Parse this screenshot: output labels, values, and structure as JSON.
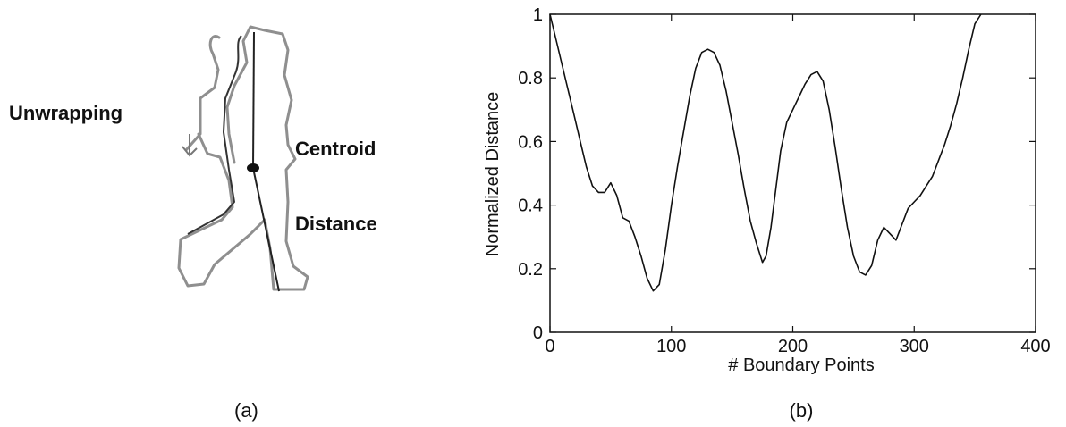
{
  "panel_a": {
    "labels": {
      "unwrapping": "Unwrapping",
      "centroid": "Centroid",
      "distance": "Distance"
    },
    "caption": "(a)"
  },
  "panel_b": {
    "caption": "(b)"
  },
  "chart_data": {
    "type": "line",
    "title": "",
    "xlabel": "# Boundary Points",
    "ylabel": "Normalized Distance",
    "xlim": [
      0,
      400
    ],
    "ylim": [
      0,
      1
    ],
    "xticks": [
      0,
      100,
      200,
      300,
      400
    ],
    "yticks": [
      0,
      0.2,
      0.4,
      0.6,
      0.8,
      1
    ],
    "grid": false,
    "series": [
      {
        "x": [
          0,
          5,
          10,
          15,
          20,
          25,
          30,
          35,
          40,
          45,
          50,
          55,
          60,
          65,
          70,
          75,
          80,
          85,
          90,
          95,
          100,
          105,
          110,
          115,
          120,
          125,
          130,
          135,
          140,
          145,
          150,
          155,
          160,
          165,
          170,
          175,
          178,
          182,
          186,
          190,
          195,
          200,
          205,
          210,
          215,
          220,
          225,
          230,
          235,
          240,
          245,
          250,
          255,
          260,
          265,
          270,
          275,
          280,
          285,
          290,
          295,
          300,
          305,
          310,
          315,
          320,
          325,
          330,
          335,
          340,
          345,
          350,
          355
        ],
        "y": [
          1.0,
          0.92,
          0.84,
          0.76,
          0.68,
          0.6,
          0.52,
          0.46,
          0.44,
          0.44,
          0.47,
          0.43,
          0.36,
          0.35,
          0.3,
          0.24,
          0.17,
          0.13,
          0.15,
          0.26,
          0.4,
          0.52,
          0.63,
          0.74,
          0.83,
          0.88,
          0.89,
          0.88,
          0.84,
          0.76,
          0.66,
          0.56,
          0.45,
          0.35,
          0.28,
          0.22,
          0.24,
          0.33,
          0.45,
          0.57,
          0.66,
          0.7,
          0.74,
          0.78,
          0.81,
          0.82,
          0.79,
          0.7,
          0.58,
          0.45,
          0.33,
          0.24,
          0.19,
          0.18,
          0.21,
          0.29,
          0.33,
          0.31,
          0.29,
          0.34,
          0.39,
          0.41,
          0.43,
          0.46,
          0.49,
          0.54,
          0.59,
          0.65,
          0.72,
          0.8,
          0.89,
          0.97,
          1.0
        ]
      }
    ]
  }
}
